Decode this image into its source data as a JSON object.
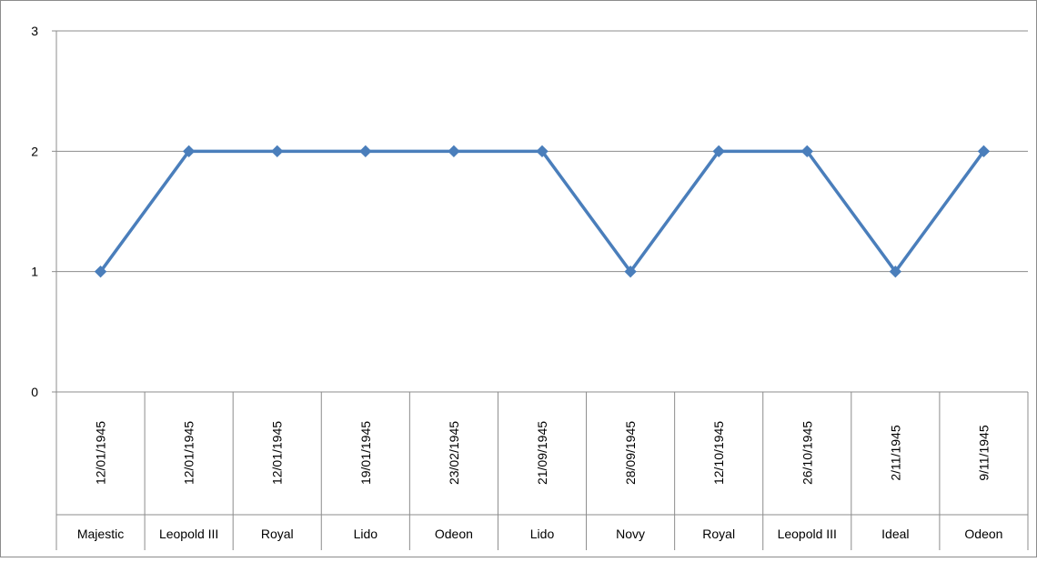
{
  "chart_data": {
    "type": "line",
    "title": "",
    "xlabel": "",
    "ylabel": "",
    "ylim": [
      0,
      3
    ],
    "yticks": [
      "0",
      "1",
      "2",
      "3"
    ],
    "grid": true,
    "legend": "none",
    "categories": [
      {
        "date": "12/01/1945",
        "venue": "Majestic"
      },
      {
        "date": "12/01/1945",
        "venue": "Leopold III"
      },
      {
        "date": "12/01/1945",
        "venue": "Royal"
      },
      {
        "date": "19/01/1945",
        "venue": "Lido"
      },
      {
        "date": "23/02/1945",
        "venue": "Odeon"
      },
      {
        "date": "21/09/1945",
        "venue": "Lido"
      },
      {
        "date": "28/09/1945",
        "venue": "Novy"
      },
      {
        "date": "12/10/1945",
        "venue": "Royal"
      },
      {
        "date": "26/10/1945",
        "venue": "Leopold III"
      },
      {
        "date": "2/11/1945",
        "venue": "Ideal"
      },
      {
        "date": "9/11/1945",
        "venue": "Odeon"
      }
    ],
    "series": [
      {
        "values": [
          1,
          2,
          2,
          2,
          2,
          2,
          1,
          2,
          2,
          1,
          2
        ],
        "color": "#4a7ebb"
      }
    ]
  }
}
